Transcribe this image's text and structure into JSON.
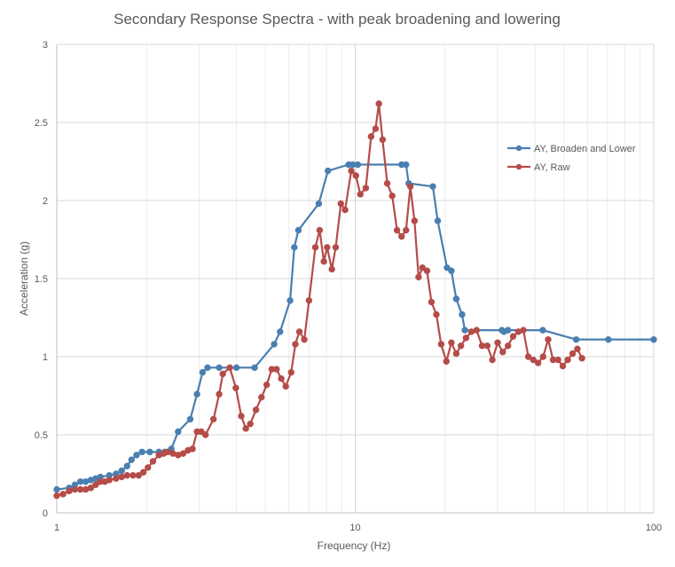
{
  "chart_data": {
    "type": "scatter",
    "title": "Secondary Response Spectra - with peak broadening and lowering",
    "xlabel": "Frequency (Hz)",
    "ylabel": "Acceleration (g)",
    "xscale": "log",
    "xlim": [
      1,
      100
    ],
    "ylim": [
      0,
      3
    ],
    "x_ticks": [
      1,
      10,
      100
    ],
    "y_ticks": [
      0,
      0.5,
      1,
      1.5,
      2,
      2.5,
      3
    ],
    "grid": true,
    "legend": "right",
    "lines_connect_markers": true,
    "series": [
      {
        "name": "AY, Broaden and Lower",
        "color": "#4a7fb1",
        "points": [
          [
            1.0,
            0.15
          ],
          [
            1.1,
            0.16
          ],
          [
            1.15,
            0.18
          ],
          [
            1.2,
            0.2
          ],
          [
            1.25,
            0.2
          ],
          [
            1.3,
            0.21
          ],
          [
            1.35,
            0.22
          ],
          [
            1.4,
            0.23
          ],
          [
            1.5,
            0.24
          ],
          [
            1.58,
            0.25
          ],
          [
            1.65,
            0.27
          ],
          [
            1.72,
            0.3
          ],
          [
            1.78,
            0.34
          ],
          [
            1.85,
            0.37
          ],
          [
            1.93,
            0.39
          ],
          [
            2.05,
            0.39
          ],
          [
            2.2,
            0.39
          ],
          [
            2.3,
            0.39
          ],
          [
            2.42,
            0.41
          ],
          [
            2.55,
            0.52
          ],
          [
            2.8,
            0.6
          ],
          [
            2.95,
            0.76
          ],
          [
            3.08,
            0.9
          ],
          [
            3.2,
            0.93
          ],
          [
            3.5,
            0.93
          ],
          [
            4.0,
            0.93
          ],
          [
            4.6,
            0.93
          ],
          [
            5.35,
            1.08
          ],
          [
            5.6,
            1.16
          ],
          [
            6.05,
            1.36
          ],
          [
            6.25,
            1.7
          ],
          [
            6.45,
            1.81
          ],
          [
            7.55,
            1.98
          ],
          [
            8.1,
            2.19
          ],
          [
            9.5,
            2.23
          ],
          [
            9.8,
            2.23
          ],
          [
            10.2,
            2.23
          ],
          [
            14.3,
            2.23
          ],
          [
            14.8,
            2.23
          ],
          [
            15.1,
            2.11
          ],
          [
            18.2,
            2.09
          ],
          [
            18.9,
            1.87
          ],
          [
            20.3,
            1.57
          ],
          [
            21.0,
            1.55
          ],
          [
            21.8,
            1.37
          ],
          [
            22.8,
            1.27
          ],
          [
            23.3,
            1.17
          ],
          [
            31.0,
            1.17
          ],
          [
            31.5,
            1.16
          ],
          [
            32.5,
            1.17
          ],
          [
            42.5,
            1.17
          ],
          [
            55.0,
            1.11
          ],
          [
            70.5,
            1.11
          ],
          [
            100.0,
            1.11
          ]
        ]
      },
      {
        "name": "AY, Raw",
        "color": "#b44c49",
        "points": [
          [
            1.0,
            0.11
          ],
          [
            1.05,
            0.12
          ],
          [
            1.1,
            0.14
          ],
          [
            1.15,
            0.15
          ],
          [
            1.2,
            0.15
          ],
          [
            1.25,
            0.15
          ],
          [
            1.3,
            0.16
          ],
          [
            1.35,
            0.18
          ],
          [
            1.4,
            0.2
          ],
          [
            1.45,
            0.2
          ],
          [
            1.5,
            0.21
          ],
          [
            1.58,
            0.22
          ],
          [
            1.65,
            0.23
          ],
          [
            1.72,
            0.24
          ],
          [
            1.8,
            0.24
          ],
          [
            1.88,
            0.24
          ],
          [
            1.95,
            0.26
          ],
          [
            2.02,
            0.29
          ],
          [
            2.1,
            0.33
          ],
          [
            2.2,
            0.37
          ],
          [
            2.28,
            0.38
          ],
          [
            2.35,
            0.39
          ],
          [
            2.45,
            0.38
          ],
          [
            2.55,
            0.37
          ],
          [
            2.65,
            0.38
          ],
          [
            2.75,
            0.4
          ],
          [
            2.85,
            0.41
          ],
          [
            2.95,
            0.52
          ],
          [
            3.05,
            0.52
          ],
          [
            3.15,
            0.5
          ],
          [
            3.35,
            0.6
          ],
          [
            3.5,
            0.76
          ],
          [
            3.6,
            0.89
          ],
          [
            3.8,
            0.93
          ],
          [
            3.98,
            0.8
          ],
          [
            4.15,
            0.62
          ],
          [
            4.3,
            0.54
          ],
          [
            4.45,
            0.57
          ],
          [
            4.65,
            0.66
          ],
          [
            4.85,
            0.74
          ],
          [
            5.05,
            0.82
          ],
          [
            5.25,
            0.92
          ],
          [
            5.45,
            0.92
          ],
          [
            5.65,
            0.86
          ],
          [
            5.85,
            0.81
          ],
          [
            6.1,
            0.9
          ],
          [
            6.3,
            1.08
          ],
          [
            6.5,
            1.16
          ],
          [
            6.75,
            1.11
          ],
          [
            7.0,
            1.36
          ],
          [
            7.35,
            1.7
          ],
          [
            7.6,
            1.81
          ],
          [
            7.85,
            1.61
          ],
          [
            8.05,
            1.7
          ],
          [
            8.35,
            1.56
          ],
          [
            8.6,
            1.7
          ],
          [
            8.95,
            1.98
          ],
          [
            9.25,
            1.94
          ],
          [
            9.7,
            2.19
          ],
          [
            10.05,
            2.16
          ],
          [
            10.4,
            2.04
          ],
          [
            10.85,
            2.08
          ],
          [
            11.3,
            2.41
          ],
          [
            11.7,
            2.46
          ],
          [
            12.0,
            2.62
          ],
          [
            12.35,
            2.39
          ],
          [
            12.8,
            2.11
          ],
          [
            13.3,
            2.03
          ],
          [
            13.8,
            1.81
          ],
          [
            14.3,
            1.77
          ],
          [
            14.8,
            1.81
          ],
          [
            15.3,
            2.09
          ],
          [
            15.8,
            1.87
          ],
          [
            16.3,
            1.51
          ],
          [
            16.8,
            1.57
          ],
          [
            17.4,
            1.55
          ],
          [
            18.0,
            1.35
          ],
          [
            18.7,
            1.27
          ],
          [
            19.4,
            1.08
          ],
          [
            20.2,
            0.97
          ],
          [
            21.0,
            1.09
          ],
          [
            21.8,
            1.02
          ],
          [
            22.6,
            1.07
          ],
          [
            23.5,
            1.12
          ],
          [
            24.5,
            1.16
          ],
          [
            25.5,
            1.17
          ],
          [
            26.6,
            1.07
          ],
          [
            27.7,
            1.07
          ],
          [
            28.8,
            0.98
          ],
          [
            30.0,
            1.09
          ],
          [
            31.2,
            1.03
          ],
          [
            32.5,
            1.07
          ],
          [
            33.8,
            1.13
          ],
          [
            35.2,
            1.16
          ],
          [
            36.6,
            1.17
          ],
          [
            38.0,
            1.0
          ],
          [
            39.5,
            0.98
          ],
          [
            41.0,
            0.96
          ],
          [
            42.6,
            1.0
          ],
          [
            44.3,
            1.11
          ],
          [
            46.0,
            0.98
          ],
          [
            47.8,
            0.98
          ],
          [
            49.6,
            0.94
          ],
          [
            51.5,
            0.98
          ],
          [
            53.5,
            1.02
          ],
          [
            55.5,
            1.05
          ],
          [
            57.5,
            0.99
          ]
        ]
      }
    ]
  }
}
